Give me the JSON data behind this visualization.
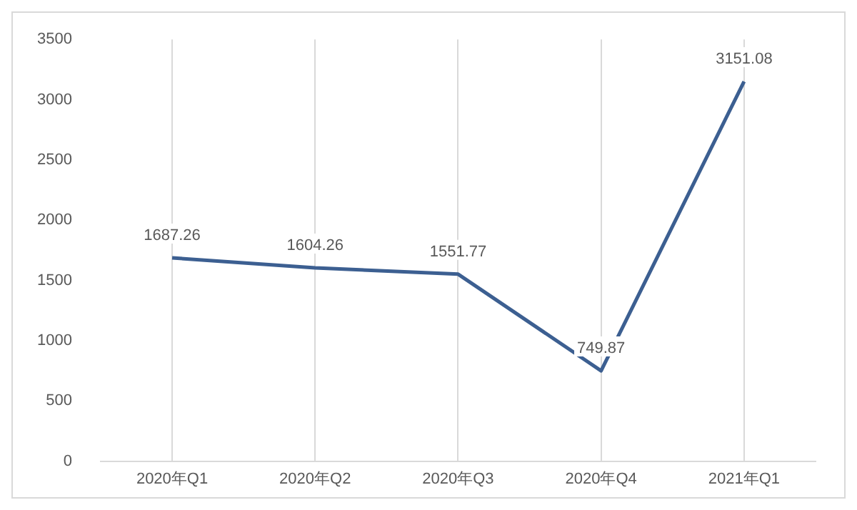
{
  "chart_data": {
    "type": "line",
    "categories": [
      "2020年Q1",
      "2020年Q2",
      "2020年Q3",
      "2020年Q4",
      "2021年Q1"
    ],
    "series": [
      {
        "color": "#3c5f91",
        "values": [
          1687.26,
          1604.26,
          1551.77,
          749.87,
          3151.08
        ]
      }
    ],
    "ylim": [
      0,
      3500
    ],
    "yticks": [
      0,
      500,
      1000,
      1500,
      2000,
      2500,
      3000,
      3500
    ],
    "grid": "x",
    "data_labels": true,
    "marker": "none",
    "line_style": "solid",
    "legend": false
  }
}
